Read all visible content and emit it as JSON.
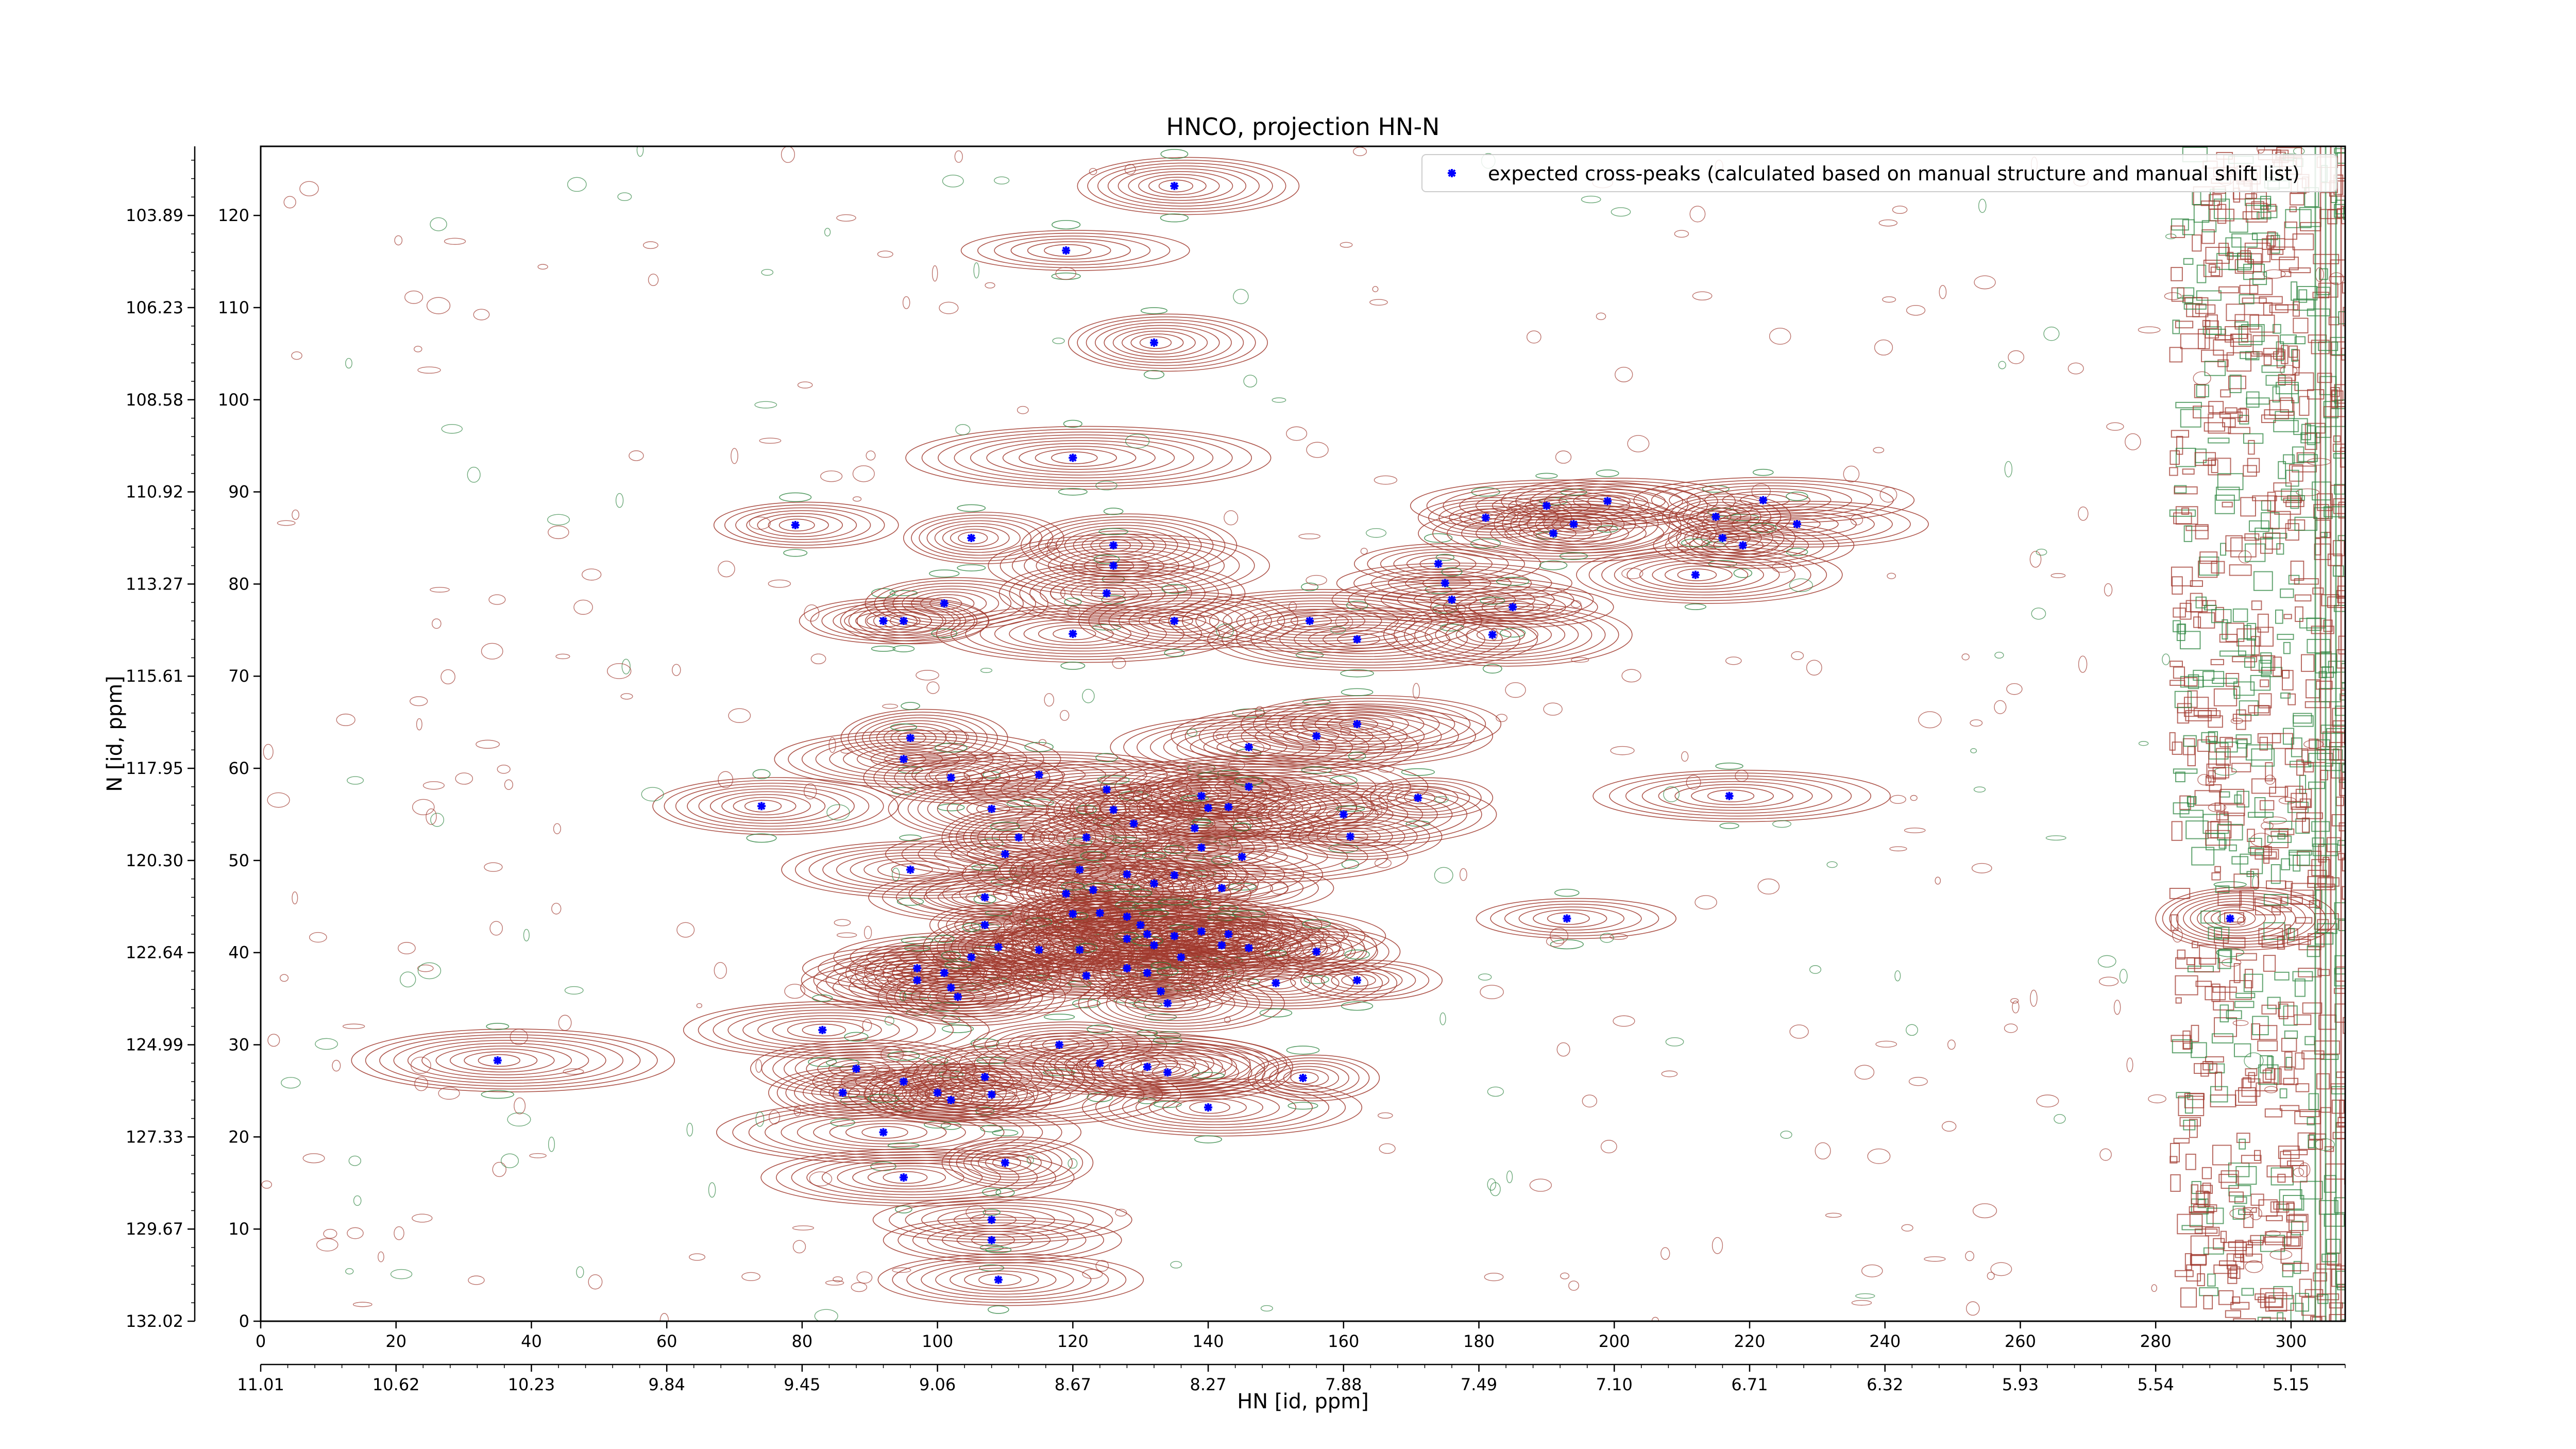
{
  "chart_data": {
    "type": "scatter",
    "title": "HNCO, projection HN-N",
    "xlabel": "HN [id, ppm]",
    "ylabel": "N [id, ppm]",
    "xlim": [
      0,
      308
    ],
    "ylim": [
      0,
      127.5
    ],
    "x_ticks": [
      0,
      20,
      40,
      60,
      80,
      100,
      120,
      140,
      160,
      180,
      200,
      220,
      240,
      260,
      280,
      300
    ],
    "y_ticks": [
      0,
      10,
      20,
      30,
      40,
      50,
      60,
      70,
      80,
      90,
      100,
      110,
      120
    ],
    "secondary_x_ticks": [
      {
        "at": 0,
        "label": "11.01"
      },
      {
        "at": 20,
        "label": "10.62"
      },
      {
        "at": 40,
        "label": "10.23"
      },
      {
        "at": 60,
        "label": "9.84"
      },
      {
        "at": 80,
        "label": "9.45"
      },
      {
        "at": 100,
        "label": "9.06"
      },
      {
        "at": 120,
        "label": "8.67"
      },
      {
        "at": 140,
        "label": "8.27"
      },
      {
        "at": 160,
        "label": "7.88"
      },
      {
        "at": 180,
        "label": "7.49"
      },
      {
        "at": 200,
        "label": "7.10"
      },
      {
        "at": 220,
        "label": "6.71"
      },
      {
        "at": 240,
        "label": "6.32"
      },
      {
        "at": 260,
        "label": "5.93"
      },
      {
        "at": 280,
        "label": "5.54"
      },
      {
        "at": 300,
        "label": "5.15"
      }
    ],
    "secondary_y_ticks": [
      {
        "at": 120,
        "label": "103.89"
      },
      {
        "at": 110,
        "label": "106.23"
      },
      {
        "at": 100,
        "label": "108.58"
      },
      {
        "at": 90,
        "label": "110.92"
      },
      {
        "at": 80,
        "label": "113.27"
      },
      {
        "at": 70,
        "label": "115.61"
      },
      {
        "at": 60,
        "label": "117.95"
      },
      {
        "at": 50,
        "label": "120.30"
      },
      {
        "at": 40,
        "label": "122.64"
      },
      {
        "at": 30,
        "label": "124.99"
      },
      {
        "at": 20,
        "label": "127.33"
      },
      {
        "at": 10,
        "label": "129.67"
      },
      {
        "at": 0,
        "label": "132.02"
      }
    ],
    "legend": {
      "position": "top-right",
      "entries": [
        "expected cross-peaks (calculated based on manual structure and manual shift list)"
      ]
    },
    "colors": {
      "marker": "#0000ff",
      "contour_positive": "#a0382d",
      "contour_negative": "#2e8540"
    },
    "series": [
      {
        "name": "expected cross-peaks (calculated based on manual structure and manual shift list)",
        "points": [
          [
            135,
            123.2
          ],
          [
            119,
            116.2
          ],
          [
            132,
            106.2
          ],
          [
            120,
            93.7
          ],
          [
            79,
            86.4
          ],
          [
            126,
            84.2
          ],
          [
            126,
            82
          ],
          [
            125,
            79
          ],
          [
            105,
            85
          ],
          [
            92,
            76
          ],
          [
            95,
            76
          ],
          [
            101,
            77.9
          ],
          [
            120,
            74.6
          ],
          [
            135,
            76
          ],
          [
            155,
            76
          ],
          [
            162,
            74
          ],
          [
            174,
            82.2
          ],
          [
            175,
            80.1
          ],
          [
            176,
            78.3
          ],
          [
            181,
            87.2
          ],
          [
            190,
            88.5
          ],
          [
            191,
            85.5
          ],
          [
            194,
            86.5
          ],
          [
            199,
            89
          ],
          [
            185,
            77.5
          ],
          [
            182,
            74.5
          ],
          [
            215,
            87.3
          ],
          [
            216,
            85
          ],
          [
            219,
            84.2
          ],
          [
            222,
            89.1
          ],
          [
            227,
            86.5
          ],
          [
            212,
            81
          ],
          [
            96,
            63.3
          ],
          [
            95,
            61
          ],
          [
            102,
            59
          ],
          [
            108,
            55.6
          ],
          [
            112,
            52.5
          ],
          [
            115,
            59.3
          ],
          [
            125,
            57.7
          ],
          [
            126,
            55.5
          ],
          [
            129,
            54
          ],
          [
            122,
            52.5
          ],
          [
            110,
            50.7
          ],
          [
            128,
            48.5
          ],
          [
            121,
            49
          ],
          [
            119,
            46.4
          ],
          [
            107,
            46
          ],
          [
            96,
            49
          ],
          [
            74,
            55.9
          ],
          [
            139,
            57
          ],
          [
            146,
            58
          ],
          [
            140,
            55.7
          ],
          [
            143,
            55.8
          ],
          [
            146,
            62.3
          ],
          [
            156,
            63.5
          ],
          [
            162,
            64.8
          ],
          [
            171,
            56.8
          ],
          [
            160,
            55
          ],
          [
            161,
            52.6
          ],
          [
            217,
            57
          ],
          [
            138,
            53.5
          ],
          [
            139,
            51.4
          ],
          [
            145,
            50.4
          ],
          [
            135,
            48.4
          ],
          [
            142,
            47
          ],
          [
            132,
            47.5
          ],
          [
            123,
            46.8
          ],
          [
            124,
            44.3
          ],
          [
            120,
            44.2
          ],
          [
            128,
            43.9
          ],
          [
            130,
            43
          ],
          [
            131,
            42
          ],
          [
            128,
            41.5
          ],
          [
            135,
            41.8
          ],
          [
            139,
            42.3
          ],
          [
            143,
            42
          ],
          [
            146,
            40.5
          ],
          [
            142,
            40.8
          ],
          [
            132,
            40.8
          ],
          [
            136,
            39.5
          ],
          [
            128,
            38.3
          ],
          [
            121,
            40.3
          ],
          [
            115,
            40.3
          ],
          [
            109,
            40.6
          ],
          [
            107,
            43
          ],
          [
            105,
            39.5
          ],
          [
            97,
            38.3
          ],
          [
            97,
            37
          ],
          [
            101,
            37.8
          ],
          [
            102,
            36.2
          ],
          [
            103,
            35.2
          ],
          [
            122,
            37.5
          ],
          [
            131,
            37.8
          ],
          [
            133,
            35.8
          ],
          [
            134,
            34.5
          ],
          [
            150,
            36.7
          ],
          [
            156,
            40.1
          ],
          [
            162,
            37
          ],
          [
            193,
            43.7
          ],
          [
            291,
            43.7
          ],
          [
            35,
            28.3
          ],
          [
            83,
            31.6
          ],
          [
            88,
            27.4
          ],
          [
            86,
            24.8
          ],
          [
            95,
            26
          ],
          [
            100,
            24.8
          ],
          [
            102,
            24
          ],
          [
            107,
            26.5
          ],
          [
            108,
            24.6
          ],
          [
            118,
            30
          ],
          [
            124,
            28
          ],
          [
            131,
            27.6
          ],
          [
            134,
            27
          ],
          [
            140,
            23.2
          ],
          [
            154,
            26.4
          ],
          [
            92,
            20.5
          ],
          [
            95,
            15.6
          ],
          [
            110,
            17.2
          ],
          [
            108,
            11
          ],
          [
            108,
            8.8
          ],
          [
            109,
            4.5
          ]
        ]
      }
    ]
  }
}
